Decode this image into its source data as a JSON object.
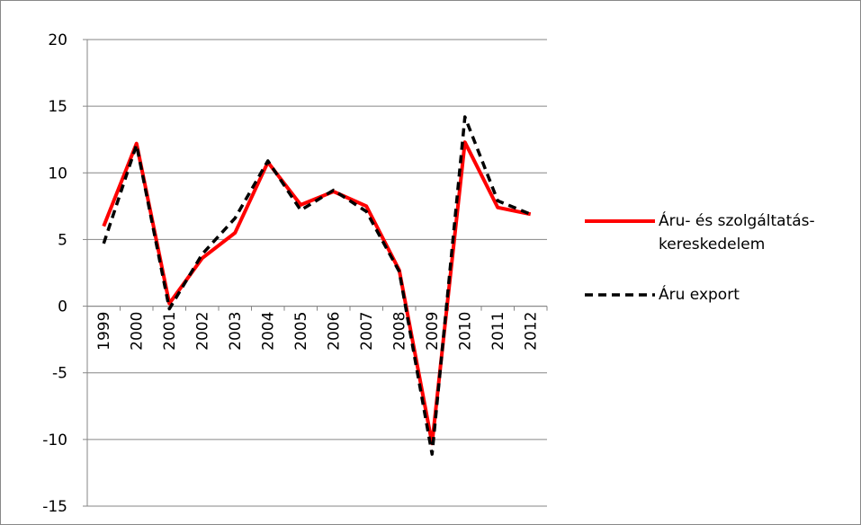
{
  "chart_data": {
    "type": "line",
    "categories": [
      "1999",
      "2000",
      "2001",
      "2002",
      "2003",
      "2004",
      "2005",
      "2006",
      "2007",
      "2008",
      "2009",
      "2010",
      "2011",
      "2012"
    ],
    "series": [
      {
        "name": "Áru- és szolgáltatás-kereskedelem",
        "color": "#ff0000",
        "dash": false,
        "values": [
          6.0,
          12.2,
          0.2,
          3.6,
          5.5,
          10.8,
          7.6,
          8.6,
          7.5,
          2.7,
          -10.3,
          12.3,
          7.4,
          6.9
        ]
      },
      {
        "name": "Áru export",
        "color": "#000000",
        "dash": true,
        "values": [
          4.7,
          12.1,
          -0.2,
          3.9,
          6.6,
          10.9,
          7.2,
          8.7,
          7.1,
          2.6,
          -11.1,
          14.2,
          7.9,
          6.9
        ]
      }
    ],
    "ylim": [
      -15,
      20
    ],
    "yticks": [
      -15,
      -10,
      -5,
      0,
      5,
      10,
      15,
      20
    ],
    "grid": true,
    "legend": "right"
  }
}
